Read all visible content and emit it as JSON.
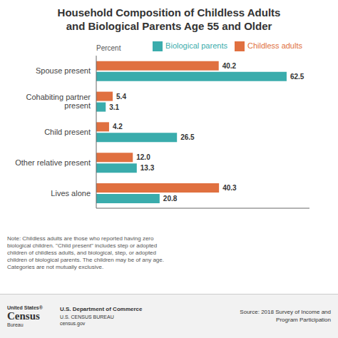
{
  "chart_data": {
    "type": "bar",
    "orientation": "horizontal",
    "title": "Household Composition of Childless Adults\nand Biological Parents Age 55 and Older",
    "x_label": "Percent",
    "categories": [
      "Spouse present",
      "Cohabiting partner\npresent",
      "Child present",
      "Other relative present",
      "Lives alone"
    ],
    "series": [
      {
        "name": "Childless adults",
        "color": "#E07040",
        "values": [
          40.2,
          5.4,
          4.2,
          12.0,
          40.3
        ],
        "value_labels": [
          "40.2",
          "5.4",
          "4.2",
          "12.0",
          "40.3"
        ]
      },
      {
        "name": "Biological parents",
        "color": "#3AACAC",
        "values": [
          62.5,
          3.1,
          26.5,
          13.3,
          20.8
        ],
        "value_labels": [
          "62.5",
          "3.1",
          "26.5",
          "13.3",
          "20.8"
        ]
      }
    ],
    "xlim": [
      0,
      70
    ],
    "tick_labels": "y",
    "data_labels": true,
    "legend": "upper right",
    "grid": false,
    "annotations": [
      "Note: Childless adults are those who reported having zero\nbiological children. \"Child present\" includes step or adopted\nchildren of childless adults, and biological, step, or adopted\nchildren of biological parents. The children may be of any age.\nCategories are not mutually exclusive.",
      "United States®",
      "Census",
      "Bureau",
      "U.S. Department of Commerce",
      "U.S. CENSUS BUREAU",
      "census.gov",
      "Source: 2018 Survey of Income and\nProgram Participation"
    ]
  }
}
